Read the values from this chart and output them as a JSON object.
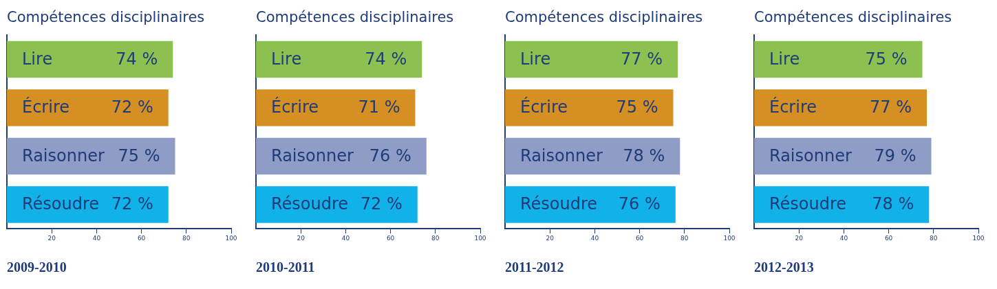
{
  "chart_data": [
    {
      "type": "bar",
      "orientation": "horizontal",
      "title": "Compétences disciplinaires",
      "xlabel": "2009-2010",
      "categories": [
        "Lire",
        "Écrire",
        "Raisonner",
        "Résoudre"
      ],
      "values": [
        74,
        72,
        75,
        72
      ],
      "value_labels": [
        "74 %",
        "72 %",
        "75 %",
        "72 %"
      ],
      "colors": [
        "#8cc152",
        "#d68f22",
        "#8e9cc6",
        "#11b2ea"
      ],
      "xlim": [
        0,
        100
      ],
      "xticks": [
        20,
        40,
        60,
        80,
        100
      ],
      "grid": false,
      "legend": false
    },
    {
      "type": "bar",
      "orientation": "horizontal",
      "title": "Compétences disciplinaires",
      "xlabel": "2010-2011",
      "categories": [
        "Lire",
        "Écrire",
        "Raisonner",
        "Résoudre"
      ],
      "values": [
        74,
        71,
        76,
        72
      ],
      "value_labels": [
        "74 %",
        "71 %",
        "76 %",
        "72 %"
      ],
      "colors": [
        "#8cc152",
        "#d68f22",
        "#8e9cc6",
        "#11b2ea"
      ],
      "xlim": [
        0,
        100
      ],
      "xticks": [
        20,
        40,
        60,
        80,
        100
      ],
      "grid": false,
      "legend": false
    },
    {
      "type": "bar",
      "orientation": "horizontal",
      "title": "Compétences disciplinaires",
      "xlabel": "2011-2012",
      "categories": [
        "Lire",
        "Écrire",
        "Raisonner",
        "Résoudre"
      ],
      "values": [
        77,
        75,
        78,
        76
      ],
      "value_labels": [
        "77 %",
        "75 %",
        "78 %",
        "76 %"
      ],
      "colors": [
        "#8cc152",
        "#d68f22",
        "#8e9cc6",
        "#11b2ea"
      ],
      "xlim": [
        0,
        100
      ],
      "xticks": [
        20,
        40,
        60,
        80,
        100
      ],
      "grid": false,
      "legend": false
    },
    {
      "type": "bar",
      "orientation": "horizontal",
      "title": "Compétences disciplinaires",
      "xlabel": "2012-2013",
      "categories": [
        "Lire",
        "Écrire",
        "Raisonner",
        "Résoudre"
      ],
      "values": [
        75,
        77,
        79,
        78
      ],
      "value_labels": [
        "75 %",
        "77 %",
        "79 %",
        "78 %"
      ],
      "colors": [
        "#8cc152",
        "#d68f22",
        "#8e9cc6",
        "#11b2ea"
      ],
      "xlim": [
        0,
        100
      ],
      "xticks": [
        20,
        40,
        60,
        80,
        100
      ],
      "grid": false,
      "legend": false
    }
  ]
}
